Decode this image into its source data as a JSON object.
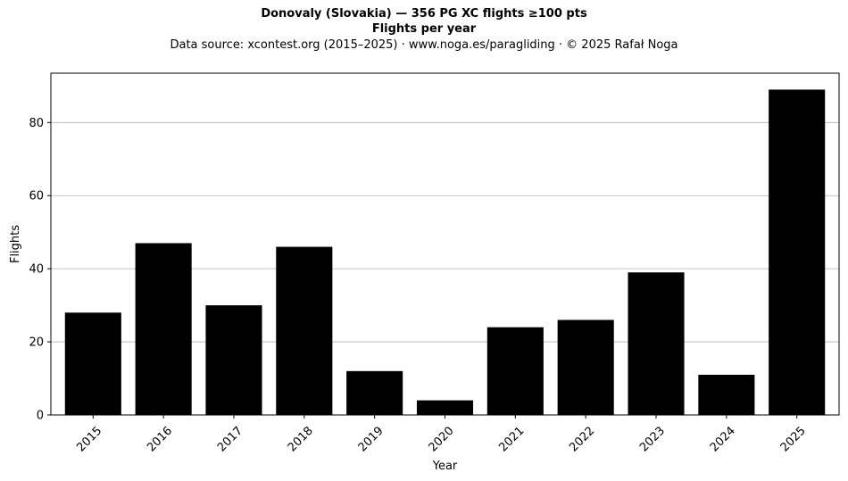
{
  "chart_data": {
    "type": "bar",
    "title": "Donovaly (Slovakia)  —  356 PG XC flights ≥100 pts",
    "subtitle": "Flights per year",
    "source": "Data source: xcontest.org (2015–2025)  ·  www.noga.es/paragliding  ·  © 2025 Rafał Noga",
    "xlabel": "Year",
    "ylabel": "Flights",
    "categories": [
      "2015",
      "2016",
      "2017",
      "2018",
      "2019",
      "2020",
      "2021",
      "2022",
      "2023",
      "2024",
      "2025"
    ],
    "values": [
      28,
      47,
      30,
      46,
      12,
      4,
      24,
      26,
      39,
      11,
      89
    ],
    "ylim": [
      0,
      93.5
    ],
    "yticks": [
      0,
      20,
      40,
      60,
      80
    ],
    "grid": "y",
    "bar_color": "#000000",
    "grid_color": "#b0b0b0"
  }
}
